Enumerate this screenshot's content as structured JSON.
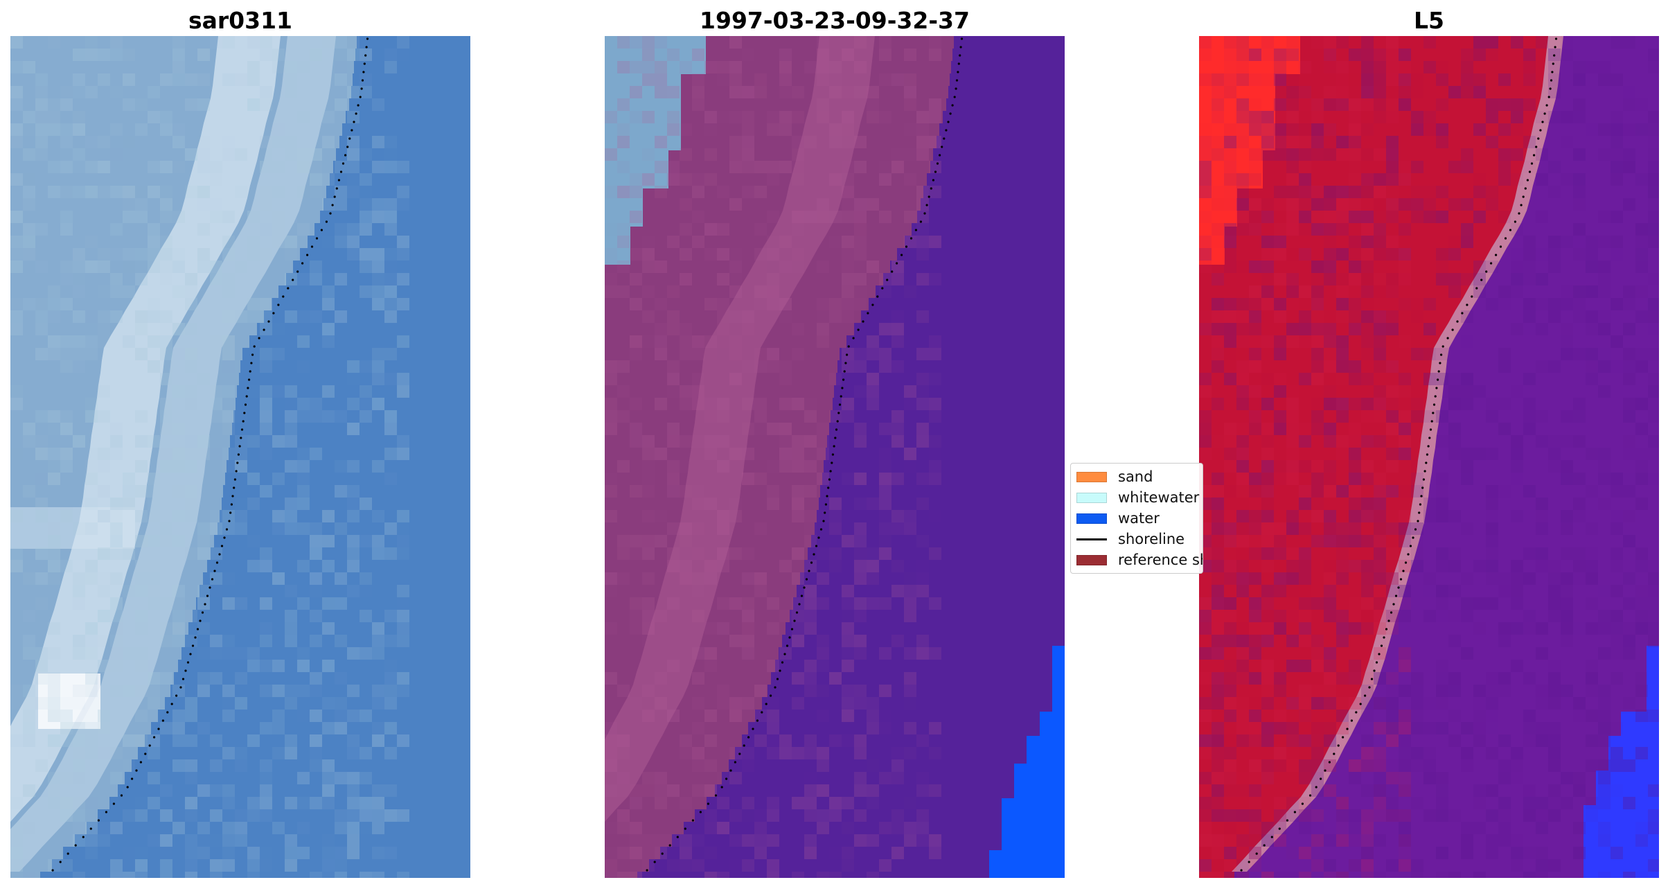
{
  "panels": [
    {
      "title": "sar0311"
    },
    {
      "title": "1997-03-23-09-32-37"
    },
    {
      "title": "L5"
    }
  ],
  "legend": {
    "items": [
      {
        "label": "sand",
        "color": "#ff8c3f",
        "kind": "patch"
      },
      {
        "label": "whitewater",
        "color": "#c8fbfb",
        "kind": "patch"
      },
      {
        "label": "water",
        "color": "#0d5bf2",
        "kind": "patch"
      },
      {
        "label": "shoreline",
        "color": "#000000",
        "kind": "line"
      },
      {
        "label": "reference shoreline",
        "color": "#9b2d33",
        "kind": "patch"
      }
    ]
  },
  "colors": {
    "rgb_water": "#4c82c4",
    "rgb_land": "#86acd0",
    "rgb_surf": "#d6e6f2",
    "class_land": "#8a3c7d",
    "class_surf": "#a5548e",
    "class_whitewater": "#7da8cc",
    "class_water": "#55229a",
    "class_bright_water": "#0b58ff",
    "index_land": "#c41236",
    "index_bright_land": "#ff2b2b",
    "index_water": "#6c1c9e",
    "index_bright_water": "#2f3aff",
    "index_transition": "#c57ea0",
    "shoreline_dots": "#000000"
  }
}
